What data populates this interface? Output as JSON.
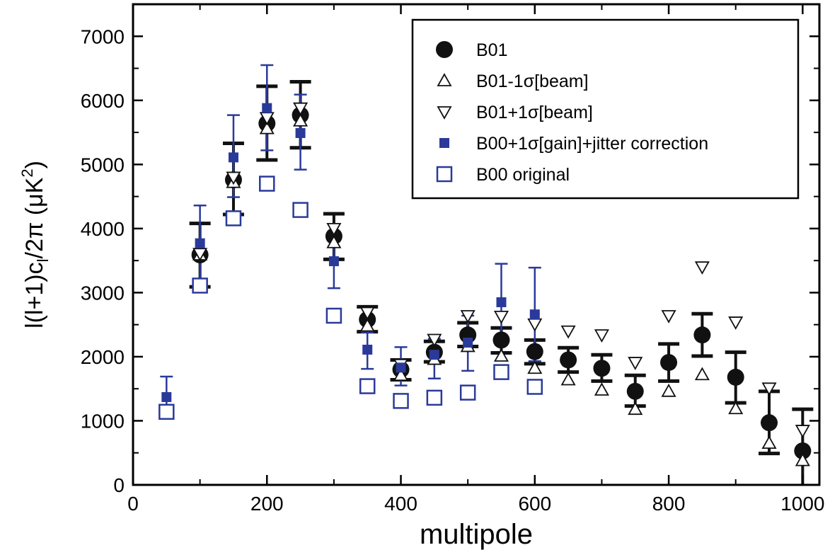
{
  "chart_data": {
    "type": "scatter",
    "title": "",
    "xlabel": "multipole",
    "ylabel": "l(l+1)c_l/2π (μK²)",
    "ylabel_parts": {
      "main": "l(l+1)c",
      "sub": "l",
      "mid": "/2π (μK",
      "sup": "2",
      "end": ")"
    },
    "xlim": [
      0,
      1025
    ],
    "ylim": [
      0,
      7500
    ],
    "x_ticks": [
      0,
      200,
      400,
      600,
      800,
      1000
    ],
    "y_ticks": [
      0,
      1000,
      2000,
      3000,
      4000,
      5000,
      6000,
      7000
    ],
    "grid": false,
    "legend_position": "top-right",
    "colors": {
      "black": "#111111",
      "blue": "#2a3a9a"
    },
    "series": [
      {
        "name": "B01",
        "marker": "filled-circle",
        "color": "#111111",
        "points": [
          {
            "x": 100,
            "y": 3590,
            "lo": 3090,
            "hi": 4080
          },
          {
            "x": 150,
            "y": 4760,
            "lo": 4220,
            "hi": 5330
          },
          {
            "x": 200,
            "y": 5640,
            "lo": 5070,
            "hi": 6220
          },
          {
            "x": 250,
            "y": 5770,
            "lo": 5260,
            "hi": 6290
          },
          {
            "x": 300,
            "y": 3880,
            "lo": 3520,
            "hi": 4230
          },
          {
            "x": 350,
            "y": 2580,
            "lo": 2390,
            "hi": 2780
          },
          {
            "x": 400,
            "y": 1800,
            "lo": 1640,
            "hi": 1950
          },
          {
            "x": 450,
            "y": 2070,
            "lo": 1920,
            "hi": 2240
          },
          {
            "x": 500,
            "y": 2340,
            "lo": 2160,
            "hi": 2530
          },
          {
            "x": 550,
            "y": 2260,
            "lo": 2060,
            "hi": 2450
          },
          {
            "x": 600,
            "y": 2080,
            "lo": 1890,
            "hi": 2260
          },
          {
            "x": 650,
            "y": 1950,
            "lo": 1760,
            "hi": 2140
          },
          {
            "x": 700,
            "y": 1820,
            "lo": 1620,
            "hi": 2030
          },
          {
            "x": 750,
            "y": 1460,
            "lo": 1230,
            "hi": 1710
          },
          {
            "x": 800,
            "y": 1910,
            "lo": 1620,
            "hi": 2200
          },
          {
            "x": 850,
            "y": 2340,
            "lo": 2010,
            "hi": 2670
          },
          {
            "x": 900,
            "y": 1680,
            "lo": 1280,
            "hi": 2070
          },
          {
            "x": 950,
            "y": 970,
            "lo": 490,
            "hi": 1460
          },
          {
            "x": 1000,
            "y": 530,
            "lo": -100,
            "hi": 1180
          }
        ]
      },
      {
        "name": "B01-1σ[beam]",
        "marker": "triangle-up",
        "color": "#111111",
        "points": [
          {
            "x": 100,
            "y": 3590
          },
          {
            "x": 150,
            "y": 4720
          },
          {
            "x": 200,
            "y": 5560
          },
          {
            "x": 250,
            "y": 5680
          },
          {
            "x": 300,
            "y": 3780
          },
          {
            "x": 350,
            "y": 2480
          },
          {
            "x": 400,
            "y": 1710
          },
          {
            "x": 450,
            "y": 1960
          },
          {
            "x": 500,
            "y": 2160
          },
          {
            "x": 550,
            "y": 2010
          },
          {
            "x": 600,
            "y": 1820
          },
          {
            "x": 650,
            "y": 1640
          },
          {
            "x": 700,
            "y": 1480
          },
          {
            "x": 750,
            "y": 1180
          },
          {
            "x": 800,
            "y": 1460
          },
          {
            "x": 850,
            "y": 1720
          },
          {
            "x": 900,
            "y": 1190
          },
          {
            "x": 950,
            "y": 650
          },
          {
            "x": 1000,
            "y": 380
          }
        ]
      },
      {
        "name": "B01+1σ[beam]",
        "marker": "triangle-down",
        "color": "#111111",
        "points": [
          {
            "x": 100,
            "y": 3610
          },
          {
            "x": 150,
            "y": 4800
          },
          {
            "x": 200,
            "y": 5730
          },
          {
            "x": 250,
            "y": 5880
          },
          {
            "x": 300,
            "y": 4000
          },
          {
            "x": 350,
            "y": 2690
          },
          {
            "x": 400,
            "y": 1880
          },
          {
            "x": 450,
            "y": 2270
          },
          {
            "x": 500,
            "y": 2640
          },
          {
            "x": 550,
            "y": 2630
          },
          {
            "x": 600,
            "y": 2510
          },
          {
            "x": 650,
            "y": 2400
          },
          {
            "x": 700,
            "y": 2340
          },
          {
            "x": 750,
            "y": 1910
          },
          {
            "x": 800,
            "y": 2640
          },
          {
            "x": 850,
            "y": 3400
          },
          {
            "x": 900,
            "y": 2540
          },
          {
            "x": 950,
            "y": 1510
          },
          {
            "x": 1000,
            "y": 850
          }
        ]
      },
      {
        "name": "B00+1σ[gain]+jitter correction",
        "marker": "filled-square",
        "color": "#2a3a9a",
        "points": [
          {
            "x": 50,
            "y": 1370,
            "lo": 1140,
            "hi": 1690
          },
          {
            "x": 100,
            "y": 3770,
            "lo": 3200,
            "hi": 4360
          },
          {
            "x": 150,
            "y": 5110,
            "lo": 4490,
            "hi": 5770
          },
          {
            "x": 200,
            "y": 5880,
            "lo": 5220,
            "hi": 6550
          },
          {
            "x": 250,
            "y": 5490,
            "lo": 4920,
            "hi": 6090
          },
          {
            "x": 300,
            "y": 3490,
            "lo": 3070,
            "hi": 3890
          },
          {
            "x": 350,
            "y": 2110,
            "lo": 1810,
            "hi": 2380
          },
          {
            "x": 400,
            "y": 1830,
            "lo": 1550,
            "hi": 2150
          },
          {
            "x": 450,
            "y": 2030,
            "lo": 1660,
            "hi": 2280
          },
          {
            "x": 500,
            "y": 2220,
            "lo": 1780,
            "hi": 2640
          },
          {
            "x": 550,
            "y": 2850,
            "lo": 2180,
            "hi": 3450
          },
          {
            "x": 600,
            "y": 2660,
            "lo": 1930,
            "hi": 3390
          }
        ]
      },
      {
        "name": "B00 original",
        "marker": "open-square",
        "color": "#2a3a9a",
        "points": [
          {
            "x": 50,
            "y": 1140
          },
          {
            "x": 100,
            "y": 3110
          },
          {
            "x": 150,
            "y": 4160
          },
          {
            "x": 200,
            "y": 4700
          },
          {
            "x": 250,
            "y": 4290
          },
          {
            "x": 300,
            "y": 2640
          },
          {
            "x": 350,
            "y": 1540
          },
          {
            "x": 400,
            "y": 1310
          },
          {
            "x": 450,
            "y": 1360
          },
          {
            "x": 500,
            "y": 1440
          },
          {
            "x": 550,
            "y": 1760
          },
          {
            "x": 600,
            "y": 1530
          }
        ]
      }
    ]
  }
}
